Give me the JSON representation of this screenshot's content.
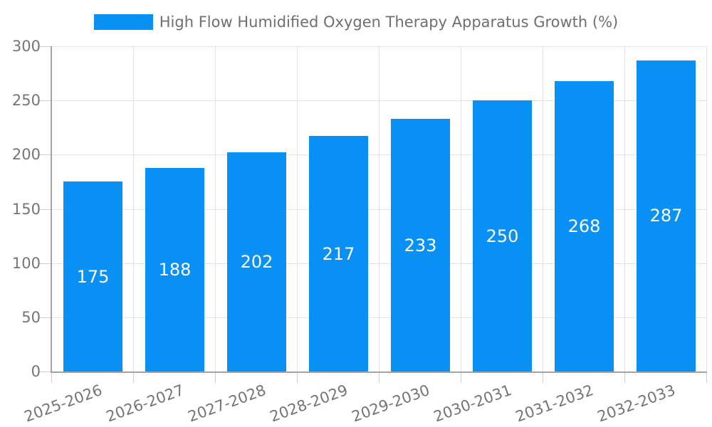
{
  "chart_data": {
    "type": "bar",
    "title": "High Flow Humidified Oxygen Therapy Apparatus Growth (%)",
    "legend": {
      "label": "High Flow Humidified Oxygen Therapy Apparatus Growth (%)",
      "position": "top"
    },
    "categories": [
      "2025-2026",
      "2026-2027",
      "2027-2028",
      "2028-2029",
      "2029-2030",
      "2030-2031",
      "2031-2032",
      "2032-2033"
    ],
    "values": [
      175,
      188,
      202,
      217,
      233,
      250,
      268,
      287
    ],
    "xlabel": "",
    "ylabel": "",
    "ylim": [
      0,
      300
    ],
    "yticks": [
      0,
      50,
      100,
      150,
      200,
      250,
      300
    ],
    "grid": true,
    "colors": {
      "bar": "#0990f5",
      "grid": "#e3e3e3",
      "axis": "#a3a3a3",
      "tick": "#cfcfcf",
      "tick_text": "#757575",
      "legend_text": "#6f6f6f",
      "value_text": "#ffffff",
      "background": "#ffffff"
    }
  }
}
